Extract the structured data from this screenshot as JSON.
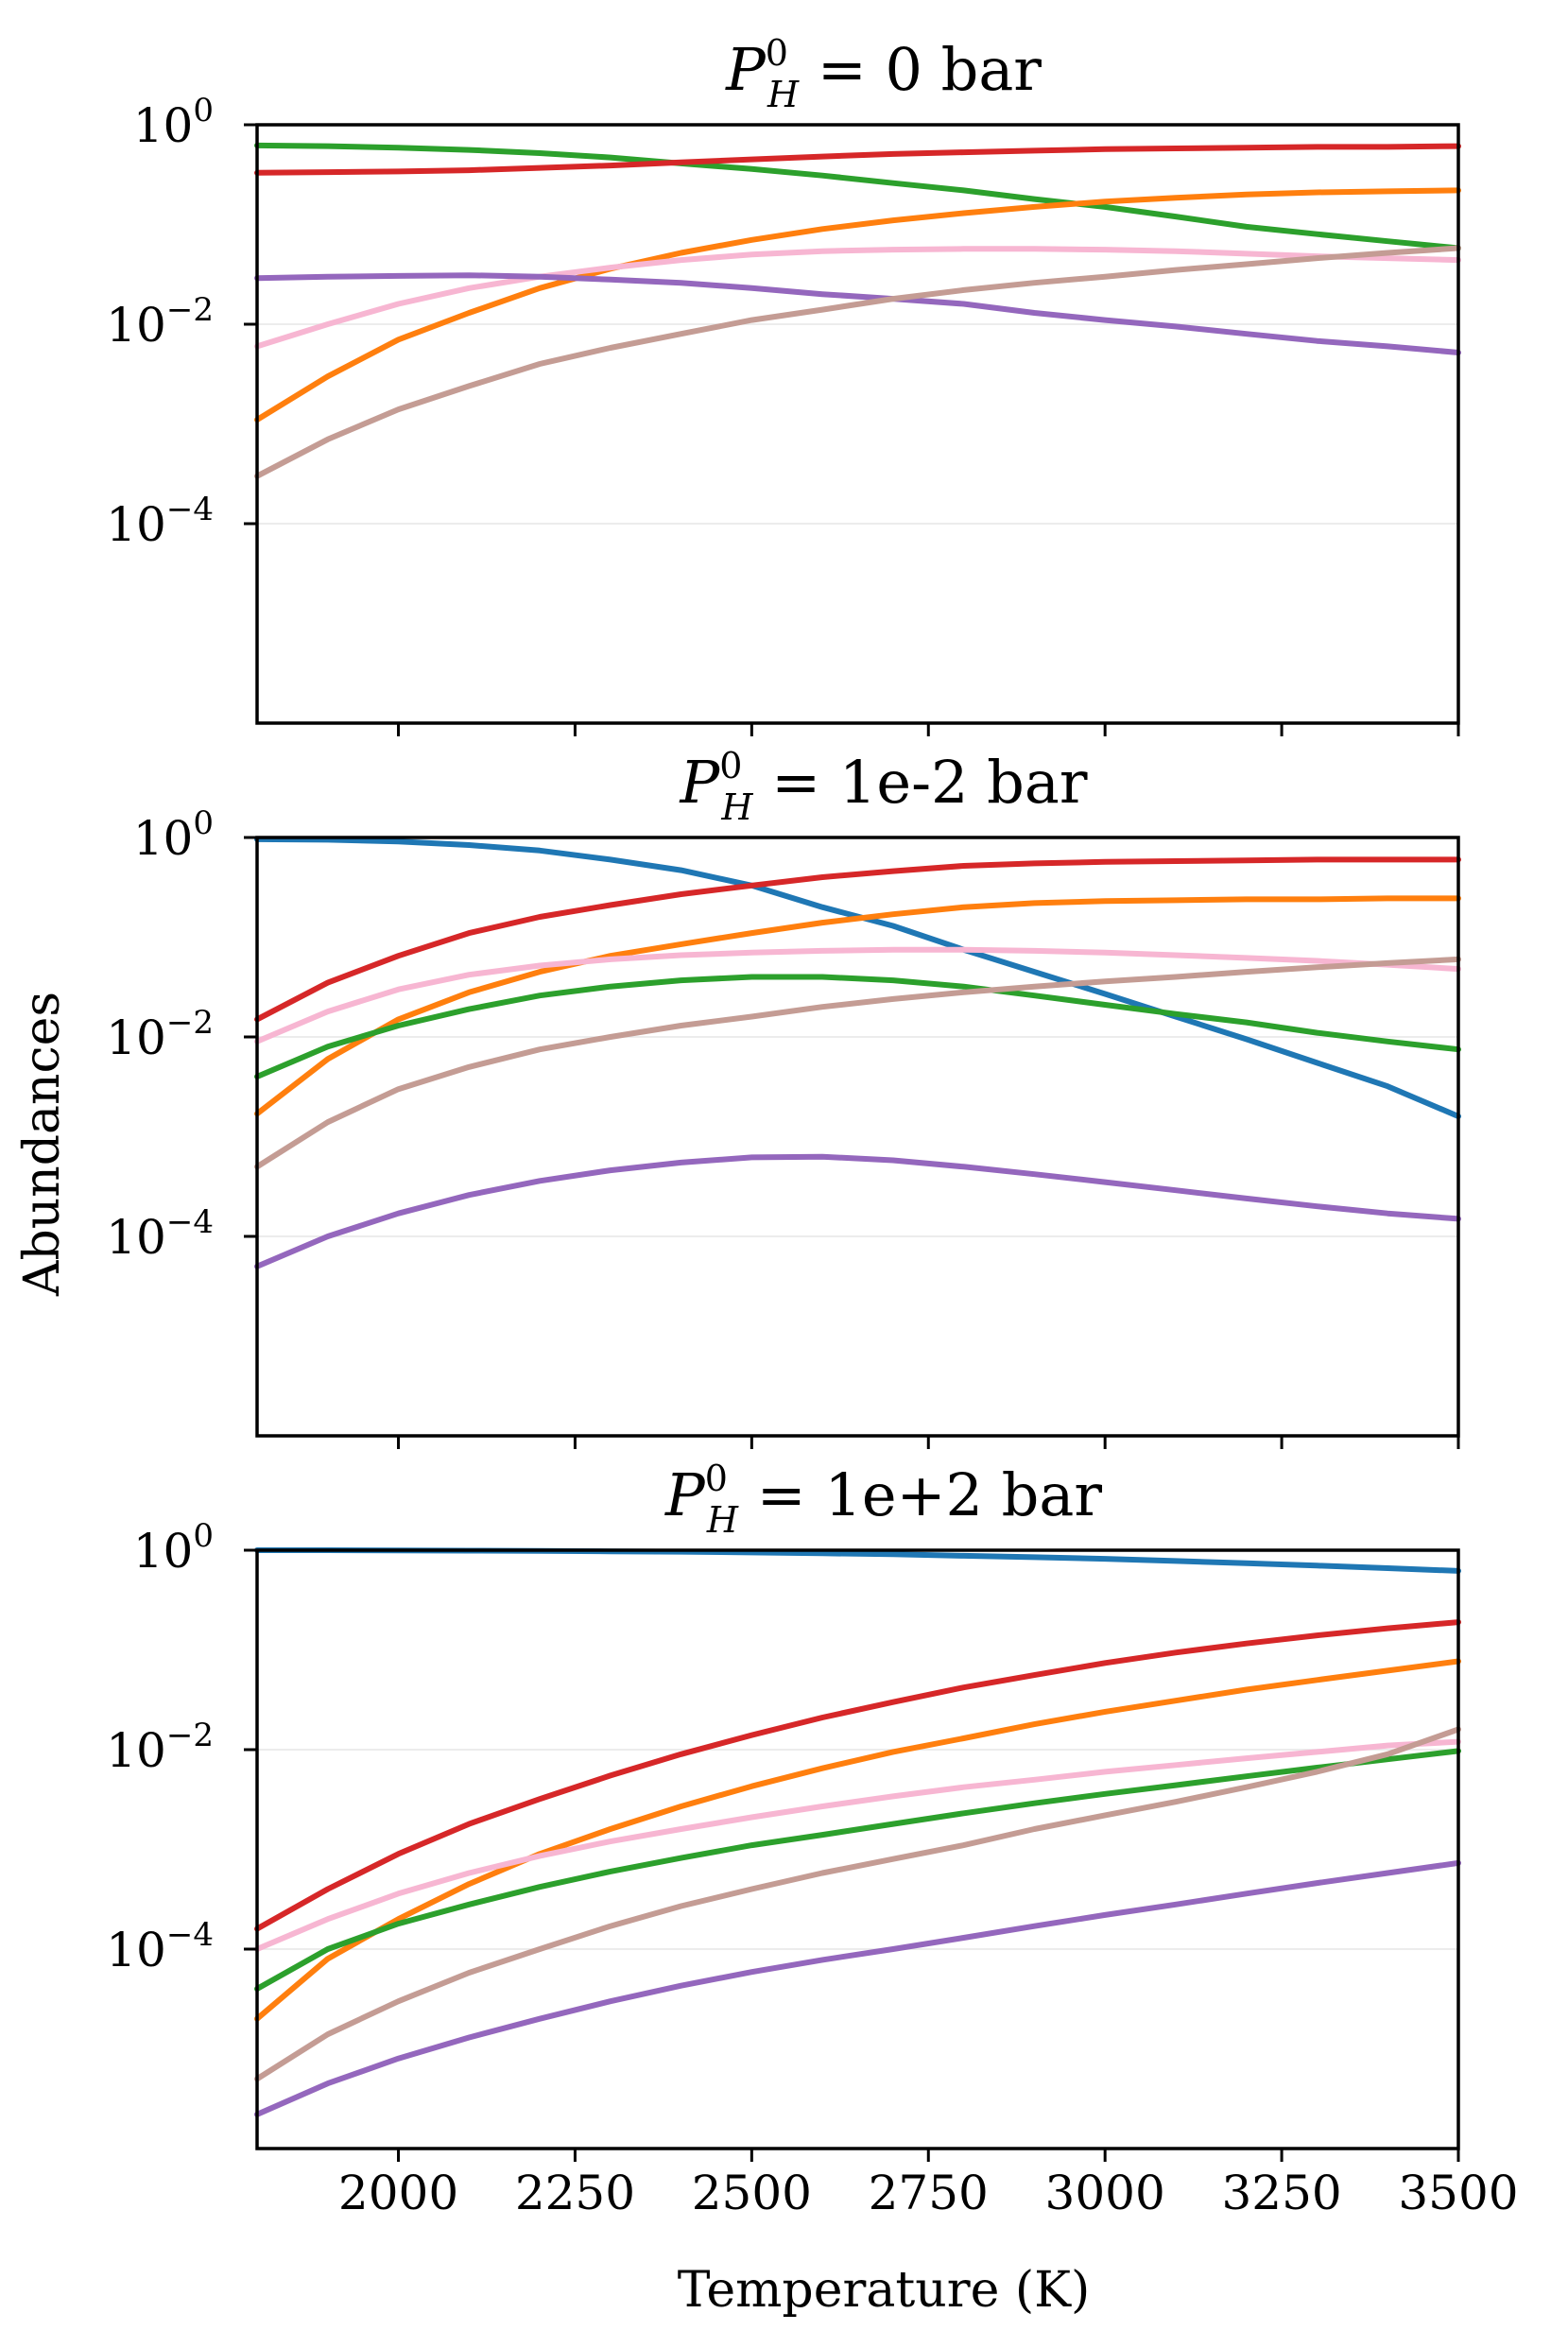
{
  "chart_data": {
    "type": "line",
    "layout": "3 vertically stacked subplots sharing x axis",
    "xlabel": "Temperature (K)",
    "ylabel": "Abundances",
    "xlim": [
      1800,
      3500
    ],
    "ylim": [
      1e-06,
      1
    ],
    "yscale": "log",
    "xticks": [
      2000,
      2250,
      2500,
      2750,
      3000,
      3250,
      3500
    ],
    "xtick_labels": [
      "2000",
      "2250",
      "2500",
      "2750",
      "3000",
      "3250",
      "3500"
    ],
    "ytick_labels": [
      {
        "value": 1,
        "base": "10",
        "exp": "0"
      },
      {
        "value": 0.01,
        "base": "10",
        "exp": "−2"
      },
      {
        "value": 0.0001,
        "base": "10",
        "exp": "−4"
      }
    ],
    "grid": "horizontal, at major y ticks",
    "legend": "none",
    "series_colors": {
      "blue": "#1f77b4",
      "orange": "#ff7f0e",
      "green": "#2ca02c",
      "red": "#d62728",
      "purple": "#9467bd",
      "brown": "#c49c94",
      "pink": "#f7b6d2"
    },
    "panels": [
      {
        "title_prefix": "P",
        "title_sup": "0",
        "title_sub": "H",
        "title_suffix": " = 0 bar",
        "x": [
          1800,
          1900,
          2000,
          2100,
          2200,
          2300,
          2400,
          2500,
          2600,
          2700,
          2800,
          2900,
          3000,
          3100,
          3200,
          3300,
          3400,
          3500
        ],
        "series": [
          {
            "name": "green",
            "color": "#2ca02c",
            "values": [
              0.62,
              0.61,
              0.59,
              0.56,
              0.52,
              0.47,
              0.41,
              0.36,
              0.31,
              0.26,
              0.22,
              0.18,
              0.15,
              0.12,
              0.095,
              0.08,
              0.068,
              0.058
            ]
          },
          {
            "name": "red",
            "color": "#d62728",
            "values": [
              0.33,
              0.335,
              0.34,
              0.35,
              0.37,
              0.39,
              0.42,
              0.45,
              0.48,
              0.51,
              0.53,
              0.55,
              0.57,
              0.58,
              0.59,
              0.6,
              0.6,
              0.61
            ]
          },
          {
            "name": "orange",
            "color": "#ff7f0e",
            "values": [
              0.0011,
              0.003,
              0.007,
              0.013,
              0.023,
              0.036,
              0.052,
              0.07,
              0.09,
              0.11,
              0.13,
              0.15,
              0.17,
              0.185,
              0.2,
              0.21,
              0.215,
              0.22
            ]
          },
          {
            "name": "pink",
            "color": "#f7b6d2",
            "values": [
              0.006,
              0.01,
              0.016,
              0.023,
              0.03,
              0.037,
              0.044,
              0.05,
              0.054,
              0.056,
              0.057,
              0.057,
              0.056,
              0.054,
              0.051,
              0.048,
              0.046,
              0.044
            ]
          },
          {
            "name": "purple",
            "color": "#9467bd",
            "values": [
              0.029,
              0.03,
              0.0305,
              0.031,
              0.03,
              0.028,
              0.026,
              0.023,
              0.02,
              0.018,
              0.016,
              0.013,
              0.011,
              0.0095,
              0.008,
              0.0068,
              0.006,
              0.0052
            ]
          },
          {
            "name": "brown",
            "color": "#c49c94",
            "values": [
              0.0003,
              0.0007,
              0.0014,
              0.0024,
              0.004,
              0.0058,
              0.008,
              0.011,
              0.014,
              0.018,
              0.022,
              0.026,
              0.03,
              0.035,
              0.04,
              0.046,
              0.052,
              0.058
            ]
          }
        ]
      },
      {
        "title_prefix": "P",
        "title_sup": "0",
        "title_sub": "H",
        "title_suffix": " = 1e-2 bar",
        "x": [
          1800,
          1900,
          2000,
          2100,
          2200,
          2300,
          2400,
          2500,
          2600,
          2700,
          2800,
          2900,
          3000,
          3100,
          3200,
          3300,
          3400,
          3500
        ],
        "series": [
          {
            "name": "blue",
            "color": "#1f77b4",
            "values": [
              0.96,
              0.95,
              0.91,
              0.84,
              0.74,
              0.6,
              0.47,
              0.33,
              0.2,
              0.13,
              0.075,
              0.045,
              0.027,
              0.016,
              0.0095,
              0.0055,
              0.0032,
              0.0016
            ]
          },
          {
            "name": "red",
            "color": "#d62728",
            "values": [
              0.015,
              0.035,
              0.065,
              0.11,
              0.16,
              0.21,
              0.27,
              0.33,
              0.4,
              0.46,
              0.52,
              0.55,
              0.57,
              0.58,
              0.59,
              0.6,
              0.6,
              0.6
            ]
          },
          {
            "name": "orange",
            "color": "#ff7f0e",
            "values": [
              0.0017,
              0.006,
              0.015,
              0.028,
              0.045,
              0.065,
              0.085,
              0.11,
              0.14,
              0.17,
              0.2,
              0.22,
              0.23,
              0.235,
              0.24,
              0.24,
              0.245,
              0.245
            ]
          },
          {
            "name": "pink",
            "color": "#f7b6d2",
            "values": [
              0.009,
              0.018,
              0.03,
              0.042,
              0.052,
              0.06,
              0.066,
              0.07,
              0.073,
              0.075,
              0.075,
              0.073,
              0.07,
              0.066,
              0.062,
              0.058,
              0.053,
              0.048
            ]
          },
          {
            "name": "green",
            "color": "#2ca02c",
            "values": [
              0.004,
              0.008,
              0.013,
              0.019,
              0.026,
              0.032,
              0.037,
              0.04,
              0.04,
              0.037,
              0.032,
              0.026,
              0.021,
              0.017,
              0.014,
              0.011,
              0.009,
              0.0075
            ]
          },
          {
            "name": "brown",
            "color": "#c49c94",
            "values": [
              0.0005,
              0.0014,
              0.003,
              0.005,
              0.0075,
              0.01,
              0.013,
              0.016,
              0.02,
              0.024,
              0.028,
              0.032,
              0.036,
              0.04,
              0.045,
              0.05,
              0.055,
              0.06
            ]
          },
          {
            "name": "purple",
            "color": "#9467bd",
            "values": [
              5e-05,
              0.0001,
              0.00017,
              0.00026,
              0.00036,
              0.00046,
              0.00055,
              0.00062,
              0.00063,
              0.00058,
              0.0005,
              0.00042,
              0.00035,
              0.00029,
              0.00024,
              0.0002,
              0.00017,
              0.00015
            ]
          }
        ]
      },
      {
        "title_prefix": "P",
        "title_sup": "0",
        "title_sub": "H",
        "title_suffix": " = 1e+2 bar",
        "x": [
          1800,
          1900,
          2000,
          2100,
          2200,
          2300,
          2400,
          2500,
          2600,
          2700,
          2800,
          2900,
          3000,
          3100,
          3200,
          3300,
          3400,
          3500
        ],
        "series": [
          {
            "name": "blue",
            "color": "#1f77b4",
            "values": [
              1.0,
              1.0,
              0.995,
              0.99,
              0.985,
              0.975,
              0.965,
              0.95,
              0.93,
              0.91,
              0.88,
              0.85,
              0.82,
              0.78,
              0.74,
              0.7,
              0.66,
              0.62
            ]
          },
          {
            "name": "red",
            "color": "#d62728",
            "values": [
              0.00016,
              0.0004,
              0.0009,
              0.0018,
              0.0032,
              0.0055,
              0.009,
              0.014,
              0.021,
              0.03,
              0.042,
              0.056,
              0.074,
              0.094,
              0.116,
              0.14,
              0.165,
              0.19
            ]
          },
          {
            "name": "orange",
            "color": "#ff7f0e",
            "values": [
              2e-05,
              8e-05,
              0.0002,
              0.00045,
              0.0009,
              0.0016,
              0.0027,
              0.0043,
              0.0065,
              0.0095,
              0.013,
              0.018,
              0.024,
              0.031,
              0.04,
              0.05,
              0.062,
              0.077
            ]
          },
          {
            "name": "pink",
            "color": "#f7b6d2",
            "values": [
              0.0001,
              0.0002,
              0.00036,
              0.00058,
              0.00086,
              0.0012,
              0.0016,
              0.0021,
              0.0027,
              0.0034,
              0.0042,
              0.005,
              0.006,
              0.007,
              0.0082,
              0.0095,
              0.011,
              0.012
            ]
          },
          {
            "name": "green",
            "color": "#2ca02c",
            "values": [
              4e-05,
              0.0001,
              0.00018,
              0.00028,
              0.00042,
              0.0006,
              0.00082,
              0.0011,
              0.0014,
              0.0018,
              0.0023,
              0.0029,
              0.0036,
              0.0044,
              0.0054,
              0.0066,
              0.008,
              0.0097
            ]
          },
          {
            "name": "brown",
            "color": "#c49c94",
            "values": [
              5e-06,
              1.4e-05,
              3e-05,
              5.8e-05,
              0.0001,
              0.00017,
              0.00027,
              0.0004,
              0.00058,
              0.0008,
              0.0011,
              0.0016,
              0.0022,
              0.003,
              0.0042,
              0.006,
              0.009,
              0.016
            ]
          },
          {
            "name": "purple",
            "color": "#9467bd",
            "values": [
              2.2e-06,
              4.5e-06,
              8e-06,
              1.3e-05,
              2e-05,
              3e-05,
              4.3e-05,
              5.9e-05,
              7.8e-05,
              0.0001,
              0.00013,
              0.00017,
              0.00022,
              0.00028,
              0.00036,
              0.00046,
              0.00058,
              0.00073
            ]
          }
        ]
      }
    ]
  }
}
